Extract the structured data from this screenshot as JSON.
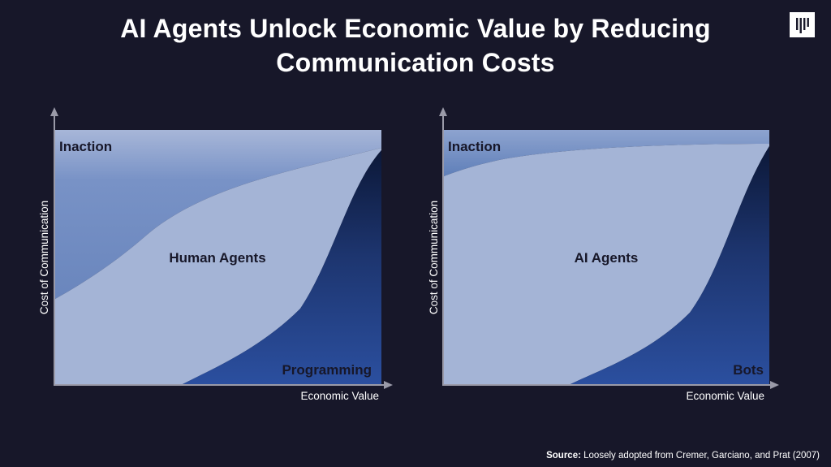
{
  "slide": {
    "title_line1": "AI Agents Unlock Economic Value by Reducing",
    "title_line2": "Communication Costs"
  },
  "logo": {
    "name": "brand-logo-icon"
  },
  "diagrams": [
    {
      "id": "human",
      "y_axis_label": "Cost of Communication",
      "x_axis_label": "Economic Value",
      "regions": {
        "top": "Inaction",
        "middle": "Human Agents",
        "bottom": "Programming"
      }
    },
    {
      "id": "ai",
      "y_axis_label": "Cost of Communication",
      "x_axis_label": "Economic Value",
      "regions": {
        "top": "Inaction",
        "middle": "AI Agents",
        "bottom": "Bots"
      }
    }
  ],
  "colors": {
    "background": "#171729",
    "inaction": "#6a86bd",
    "agents": "#a4b4d6",
    "bottom_dark": "#0d1a3c",
    "bottom_light": "#2b4d9b",
    "axis": "#9a9aa8"
  },
  "source": {
    "label": "Source:",
    "text": "Loosely adopted from Cremer, Garciano, and Prat (2007)"
  }
}
